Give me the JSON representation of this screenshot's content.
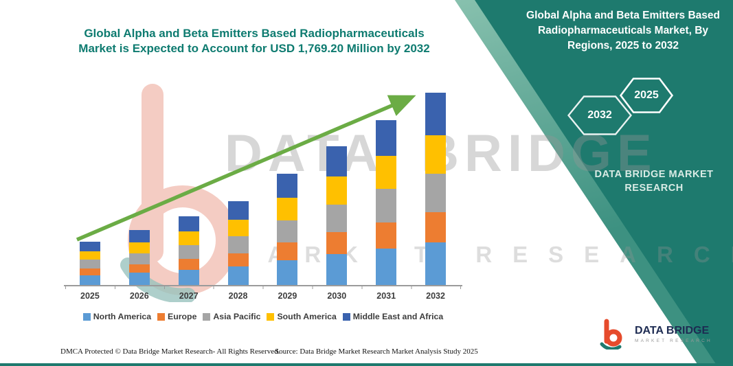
{
  "left_chart": {
    "title": "Global Alpha and Beta Emitters Based Radiopharmaceuticals Market is Expected to Account for USD 1,769.20 Million by 2032"
  },
  "right_panel": {
    "title": "Global Alpha and Beta Emitters Based Radiopharmaceuticals Market, By Regions, 2025 to 2032",
    "hexagon_left": "2032",
    "hexagon_right": "2025",
    "brand_line": "DATA BRIDGE MARKET RESEARCH",
    "teal_color": "#1E7A6E"
  },
  "watermark": {
    "line1": "DATA BRIDGE",
    "line2": "MARKET RESEARCH"
  },
  "chart_data": {
    "type": "bar",
    "stacked": true,
    "title": "Global Alpha and Beta Emitters Based Radiopharmaceuticals Market, By Regions, 2025 to 2032",
    "unit": "USD Million",
    "categories": [
      "2025",
      "2026",
      "2027",
      "2028",
      "2029",
      "2030",
      "2031",
      "2032"
    ],
    "series": [
      {
        "name": "North America",
        "color": "#5B9BD5",
        "values": [
          88,
          112,
          140,
          170,
          226,
          282,
          335,
          390
        ]
      },
      {
        "name": "Europe",
        "color": "#ED7D31",
        "values": [
          64,
          81,
          101,
          124,
          164,
          205,
          243,
          283
        ]
      },
      {
        "name": "Asia Pacific",
        "color": "#A5A5A5",
        "values": [
          80,
          101,
          127,
          154,
          205,
          256,
          304,
          354
        ]
      },
      {
        "name": "South America",
        "color": "#FFC000",
        "values": [
          80,
          101,
          126,
          154,
          205,
          255,
          303,
          354
        ]
      },
      {
        "name": "Middle East and Africa",
        "color": "#3A62AE",
        "values": [
          86,
          111,
          138,
          169,
          224,
          279,
          332,
          388
        ]
      }
    ],
    "totals": [
      398,
      506,
      632,
      771,
      1024,
      1277,
      1517,
      1769.2
    ],
    "ylim": [
      0,
      1800
    ],
    "grid": false,
    "legend_position": "bottom",
    "trend_arrow": true,
    "trend_arrow_color": "#6BAC45",
    "note": "Total for 2032 equals USD 1,769.20 Million per title"
  },
  "footer": {
    "dmca": "DMCA Protected © Data Bridge Market Research-  All Rights Reserved.",
    "source": "Source: Data Bridge Market Research  Market Analysis Study 2025"
  },
  "logo": {
    "title": "DATA BRIDGE",
    "subtitle": "MARKET RESEARCH"
  }
}
